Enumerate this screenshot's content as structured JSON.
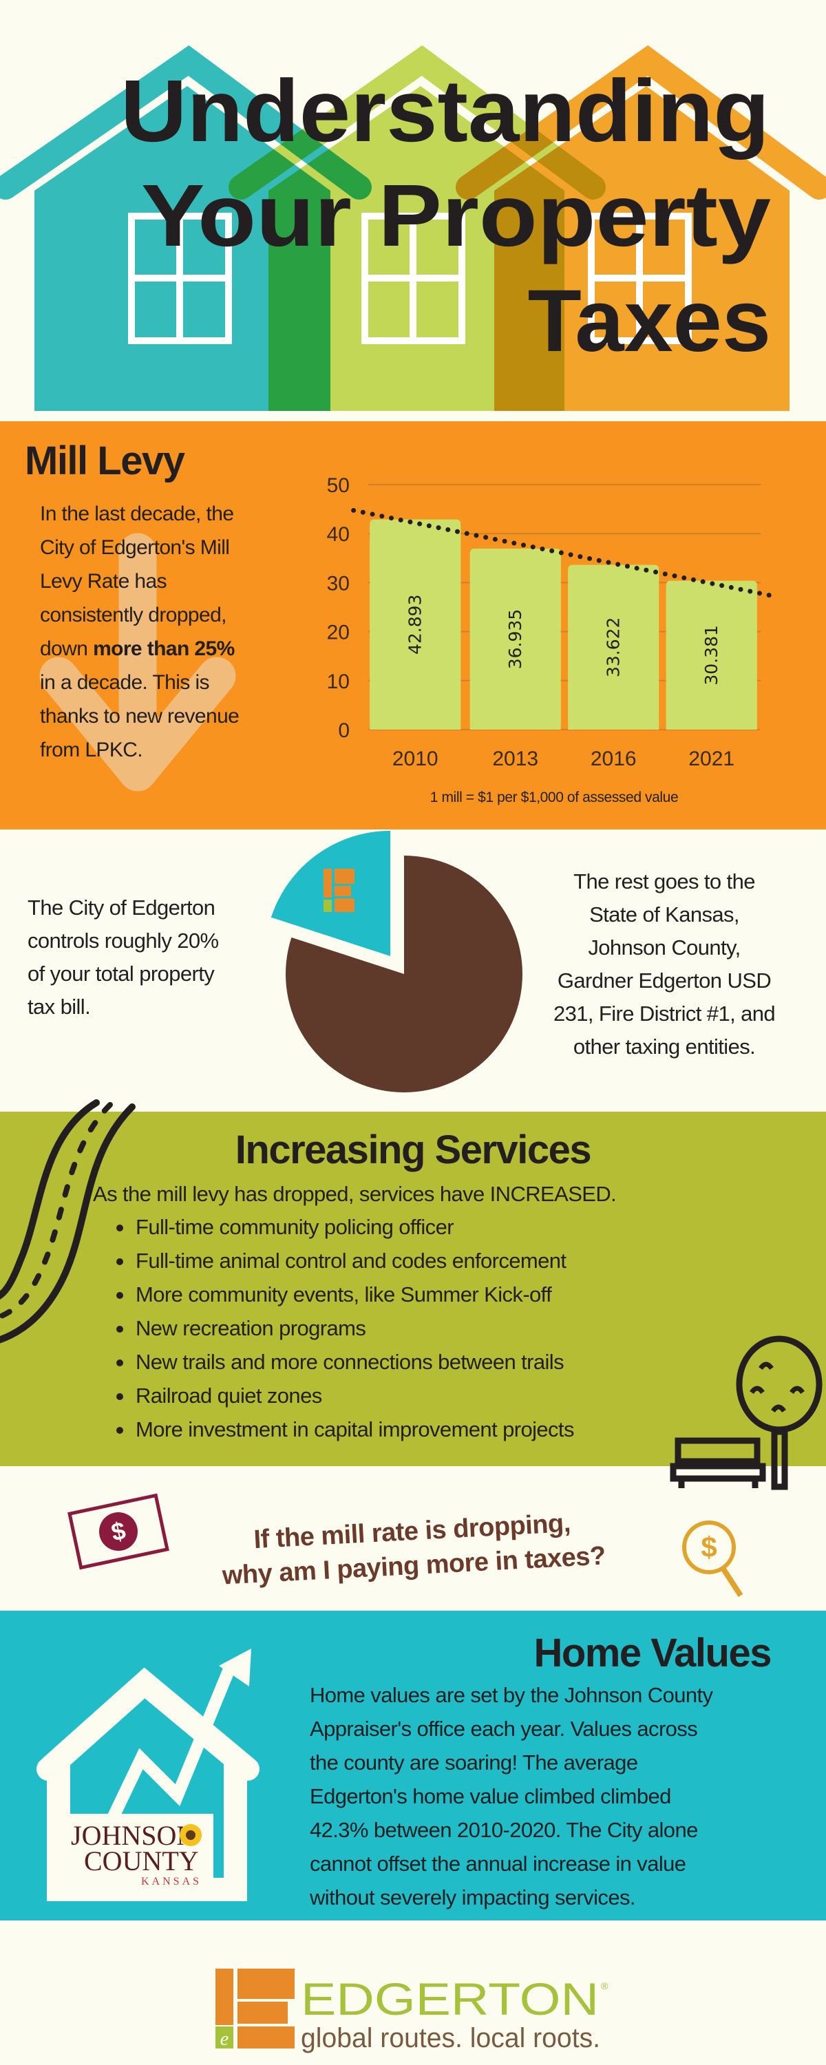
{
  "header": {
    "title_lines": [
      "Understanding",
      "Your Property",
      "Taxes"
    ]
  },
  "mill_levy": {
    "title": "Mill Levy",
    "paragraph_lines": [
      "In the last decade, the",
      "City of Edgerton's Mill",
      "Levy Rate has",
      "consistently dropped,"
    ],
    "line5_prefix": "down ",
    "line5_bold": "more than 25%",
    "paragraph_lines_end": [
      "in a decade. This is",
      "thanks to new revenue",
      "from LPKC."
    ],
    "note": "1 mill = $1 per $1,000 of assessed value"
  },
  "pie_section": {
    "left_lines": [
      "The City of Edgerton",
      "controls roughly 20%",
      "of your total property",
      "tax bill."
    ],
    "right_lines": [
      "The rest goes to the",
      "State of Kansas,",
      "Johnson County,",
      "Gardner Edgerton USD",
      "231,  Fire District #1, and",
      "other taxing entities."
    ]
  },
  "services": {
    "title": "Increasing Services",
    "intro": "As the mill levy has dropped, services have INCREASED.",
    "items": [
      "Full-time community policing officer",
      "Full-time animal control and codes enforcement",
      "More community events, like Summer Kick-off",
      "New recreation programs",
      "New trails and more connections between trails",
      "Railroad quiet zones",
      "More investment in capital improvement projects"
    ]
  },
  "question": {
    "lines": [
      "If the mill rate is dropping,",
      "why am I paying more in taxes?"
    ]
  },
  "home_values": {
    "title": "Home Values",
    "paragraph_lines": [
      "Home values are set by the Johnson County",
      "Appraiser's office each year. Values across",
      "the county are soaring! The average",
      "Edgerton's home value climbed climbed",
      "42.3% between 2010-2020.  The City alone",
      "cannot offset the annual increase in value",
      "without severely impacting services."
    ],
    "county_logo": {
      "line1": "JOHNSON",
      "line2": "COUNTY",
      "line3": "KANSAS"
    }
  },
  "footer": {
    "brand": "EDGERTON",
    "registered": "®",
    "tagline": "global routes. local roots.",
    "logo_letter": "e"
  },
  "colors": {
    "orange": "#f7931e",
    "teal": "#20bdc8",
    "olive": "#b5bd35",
    "lime": "#cddf6b",
    "brown": "#5f3a2b",
    "maroon": "#8b1a3f",
    "gold": "#e2a32b",
    "cream": "#fcfdf0"
  },
  "chart_data": [
    {
      "type": "bar",
      "categories": [
        "2010",
        "2013",
        "2016",
        "2021"
      ],
      "values": [
        42.893,
        36.935,
        33.622,
        30.381
      ],
      "ylim": [
        0,
        50
      ],
      "yticks": [
        "0",
        "10",
        "20",
        "30",
        "40",
        "50"
      ],
      "grid": true,
      "data_labels": true,
      "trendline": "linear, dotted",
      "xlabel": "",
      "ylabel": ""
    },
    {
      "type": "pie",
      "categories": [
        "City of Edgerton",
        "Other taxing entities"
      ],
      "values": [
        20,
        80
      ],
      "exploded": "City of Edgerton"
    }
  ]
}
